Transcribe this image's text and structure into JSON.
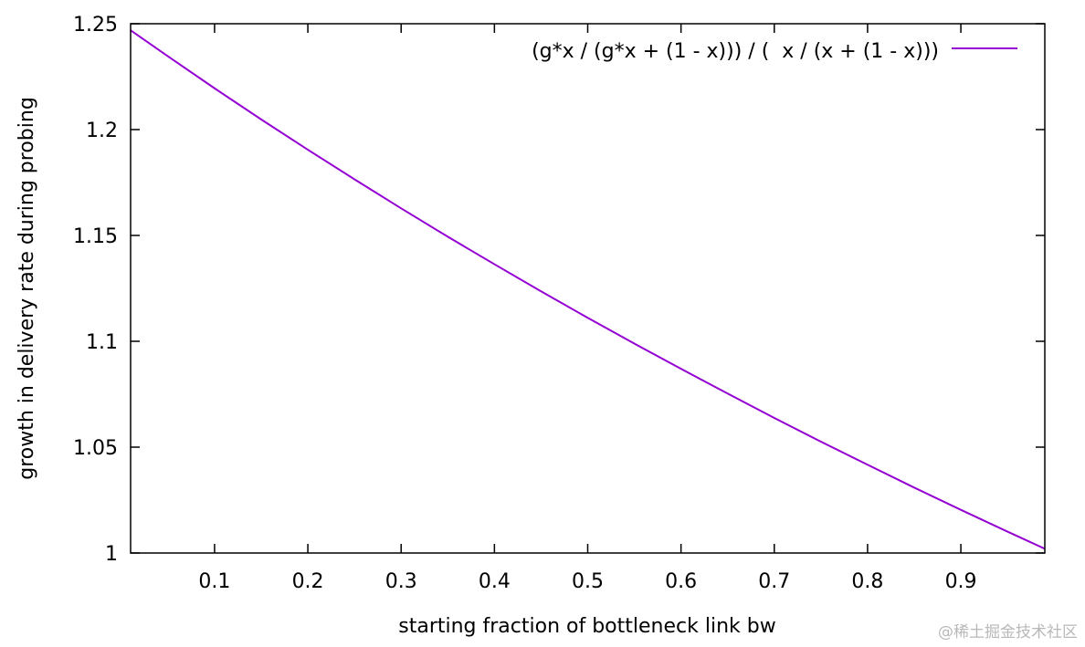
{
  "chart_data": {
    "type": "line",
    "title": "",
    "xlabel": "starting fraction of bottleneck link bw",
    "ylabel": "growth in delivery rate during probing",
    "xlim": [
      0.01,
      0.99
    ],
    "ylim": [
      1.0,
      1.25
    ],
    "x_ticks": [
      0.1,
      0.2,
      0.3,
      0.4,
      0.5,
      0.6,
      0.7,
      0.8,
      0.9
    ],
    "x_tick_labels": [
      "0.1",
      "0.2",
      "0.3",
      "0.4",
      "0.5",
      "0.6",
      "0.7",
      "0.8",
      "0.9"
    ],
    "y_ticks": [
      1.0,
      1.05,
      1.1,
      1.15,
      1.2,
      1.25
    ],
    "y_tick_labels": [
      "1",
      "1.05",
      "1.1",
      "1.15",
      "1.2",
      "1.25"
    ],
    "grid": false,
    "legend_position": "top-right",
    "series": [
      {
        "name": "(g*x / (g*x + (1 - x))) / (  x / (x + (1 - x)))",
        "color": "#9400d3",
        "x": [
          0.01,
          0.05,
          0.1,
          0.15,
          0.2,
          0.25,
          0.3,
          0.35,
          0.4,
          0.45,
          0.5,
          0.55,
          0.6,
          0.65,
          0.7,
          0.75,
          0.8,
          0.85,
          0.9,
          0.95,
          0.99
        ],
        "y": [
          1.2469,
          1.2346,
          1.2195,
          1.2048,
          1.1905,
          1.1765,
          1.1628,
          1.1494,
          1.1364,
          1.1236,
          1.1111,
          1.0989,
          1.087,
          1.0753,
          1.0638,
          1.0526,
          1.0417,
          1.0309,
          1.0204,
          1.0101,
          1.002
        ]
      }
    ]
  },
  "watermark": "@稀土掘金技术社区"
}
